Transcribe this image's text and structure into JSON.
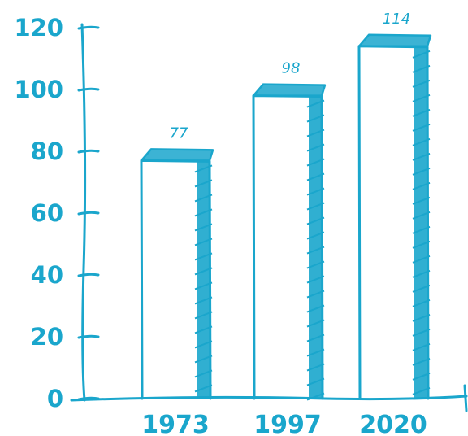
{
  "chart_data": {
    "type": "bar",
    "categories": [
      "1973",
      "1997",
      "2020"
    ],
    "values": [
      77,
      98,
      114
    ],
    "ylim": [
      0,
      120
    ],
    "yticks": [
      0,
      20,
      40,
      60,
      80,
      100,
      120
    ],
    "title": "",
    "xlabel": "",
    "ylabel": "",
    "grid": false,
    "color": "#1aa6cc"
  }
}
